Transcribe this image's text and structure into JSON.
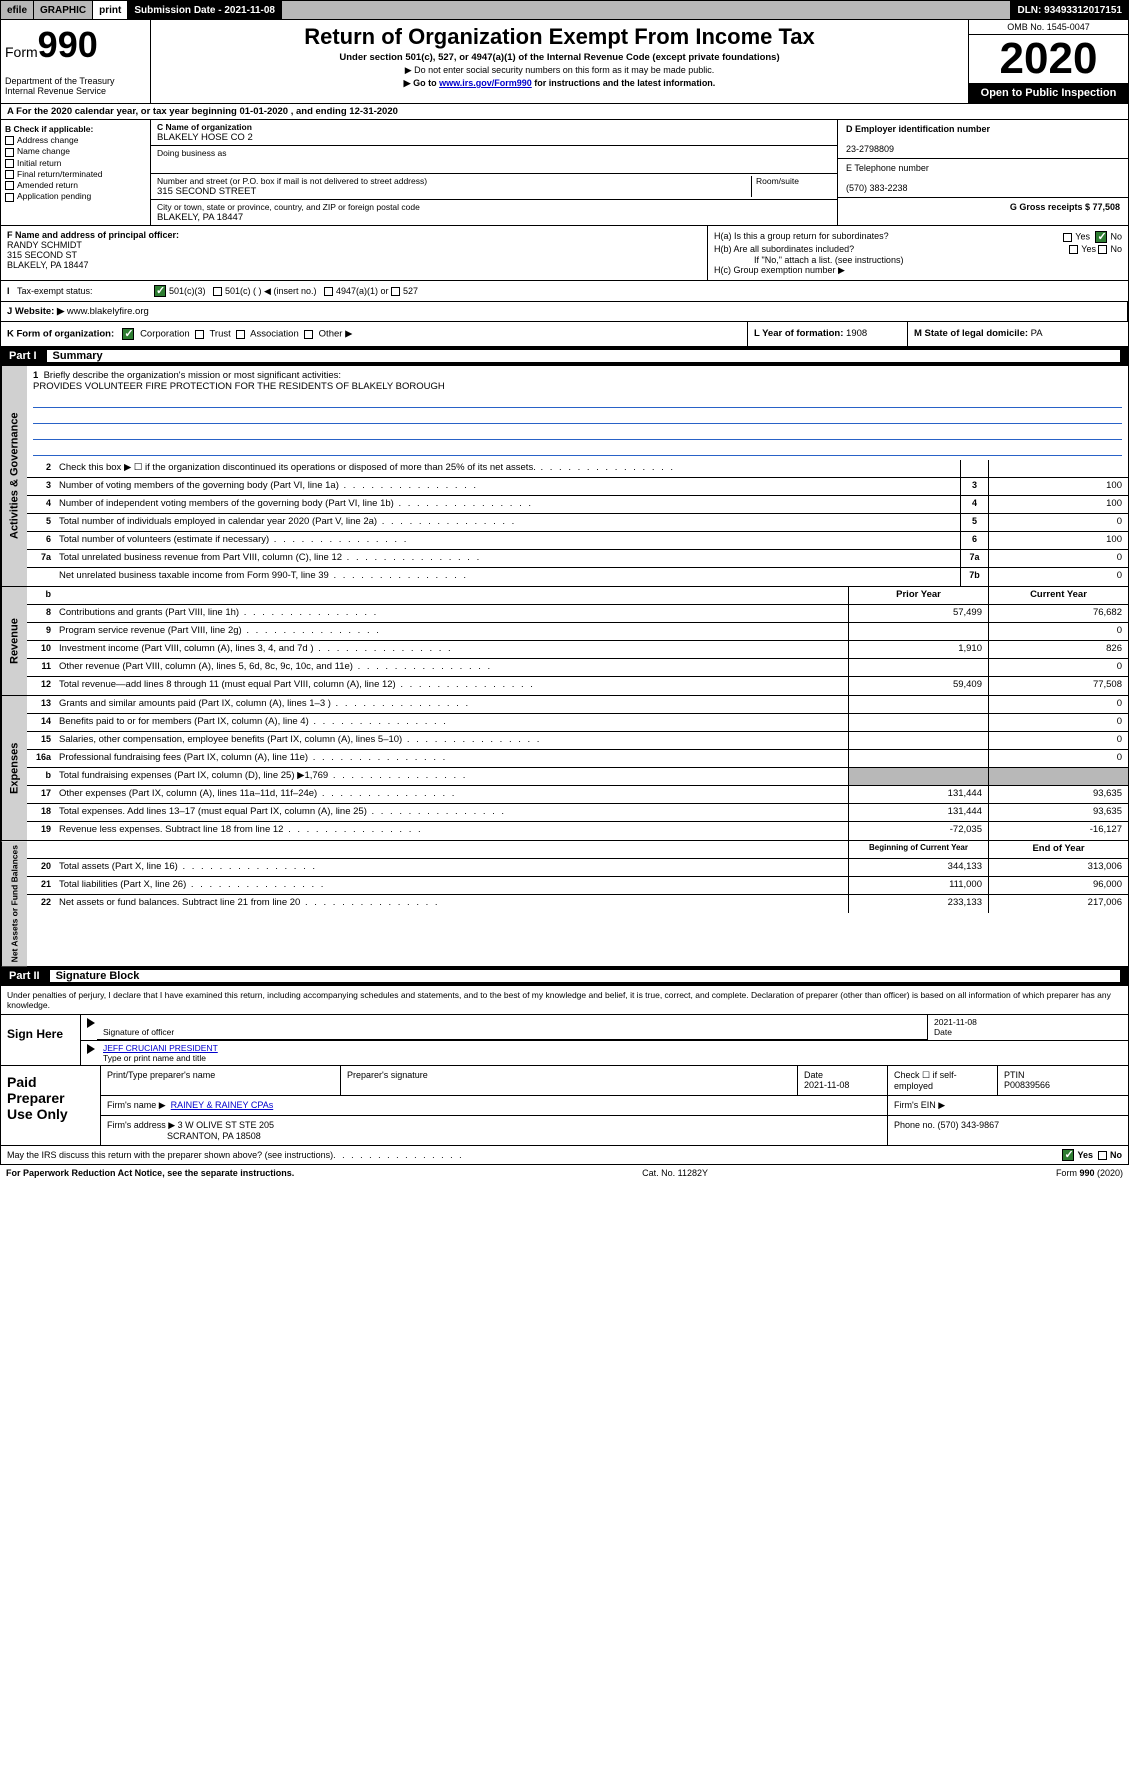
{
  "topbar": {
    "efile": "efile",
    "graphic": "GRAPHIC",
    "print": "print",
    "subdate_label": "Submission Date - 2021-11-08",
    "dln": "DLN: 93493312017151"
  },
  "header": {
    "form_prefix": "Form",
    "form_number": "990",
    "title": "Return of Organization Exempt From Income Tax",
    "subtitle": "Under section 501(c), 527, or 4947(a)(1) of the Internal Revenue Code (except private foundations)",
    "note1": "▶ Do not enter social security numbers on this form as it may be made public.",
    "note2_pre": "▶ Go to ",
    "note2_link": "www.irs.gov/Form990",
    "note2_post": " for instructions and the latest information.",
    "dept": "Department of the Treasury\nInternal Revenue Service",
    "omb": "OMB No. 1545-0047",
    "year": "2020",
    "inspection": "Open to Public Inspection"
  },
  "rowA": "A For the 2020 calendar year, or tax year beginning 01-01-2020   , and ending 12-31-2020",
  "colB": {
    "hdr": "B Check if applicable:",
    "opts": [
      "Address change",
      "Name change",
      "Initial return",
      "Final return/terminated",
      "Amended return",
      "Application pending"
    ]
  },
  "colC": {
    "name_label": "C Name of organization",
    "name": "BLAKELY HOSE CO 2",
    "dba_label": "Doing business as",
    "dba": "",
    "addr_label": "Number and street (or P.O. box if mail is not delivered to street address)",
    "room_label": "Room/suite",
    "addr": "315 SECOND STREET",
    "city_label": "City or town, state or province, country, and ZIP or foreign postal code",
    "city": "BLAKELY, PA  18447"
  },
  "colD": {
    "ein_label": "D Employer identification number",
    "ein": "23-2798809",
    "phone_label": "E Telephone number",
    "phone": "(570) 383-2238",
    "gross_label": "G Gross receipts $ 77,508"
  },
  "colF": {
    "label": "F  Name and address of principal officer:",
    "name": "RANDY SCHMIDT",
    "addr1": "315 SECOND ST",
    "addr2": "BLAKELY, PA  18447"
  },
  "colH": {
    "ha": "H(a)  Is this a group return for subordinates?",
    "hb": "H(b)  Are all subordinates included?",
    "hb_note": "If \"No,\" attach a list. (see instructions)",
    "hc": "H(c)  Group exemption number ▶",
    "yes": "Yes",
    "no": "No"
  },
  "rowI": {
    "label": "Tax-exempt status:",
    "opt1": "501(c)(3)",
    "opt2": "501(c) (   ) ◀ (insert no.)",
    "opt3": "4947(a)(1) or",
    "opt4": "527"
  },
  "rowJ": {
    "label": "J   Website: ▶",
    "val": "  www.blakelyfire.org"
  },
  "rowK": {
    "left": "K Form of organization:",
    "corp": "Corporation",
    "trust": "Trust",
    "assoc": "Association",
    "other": "Other ▶",
    "mid_label": "L Year of formation: ",
    "mid_val": "1908",
    "right_label": "M State of legal domicile: ",
    "right_val": "PA"
  },
  "part1": {
    "num": "Part I",
    "title": "Summary"
  },
  "mission": {
    "num": "1",
    "label": "Briefly describe the organization's mission or most significant activities:",
    "text": "PROVIDES VOLUNTEER FIRE PROTECTION FOR THE RESIDENTS OF BLAKELY BOROUGH"
  },
  "gov_rows": [
    {
      "num": "2",
      "desc": "Check this box ▶ ☐  if the organization discontinued its operations or disposed of more than 25% of its net assets.",
      "box": "",
      "val": ""
    },
    {
      "num": "3",
      "desc": "Number of voting members of the governing body (Part VI, line 1a)",
      "box": "3",
      "val": "100"
    },
    {
      "num": "4",
      "desc": "Number of independent voting members of the governing body (Part VI, line 1b)",
      "box": "4",
      "val": "100"
    },
    {
      "num": "5",
      "desc": "Total number of individuals employed in calendar year 2020 (Part V, line 2a)",
      "box": "5",
      "val": "0"
    },
    {
      "num": "6",
      "desc": "Total number of volunteers (estimate if necessary)",
      "box": "6",
      "val": "100"
    },
    {
      "num": "7a",
      "desc": "Total unrelated business revenue from Part VIII, column (C), line 12",
      "box": "7a",
      "val": "0"
    },
    {
      "num": "",
      "desc": "Net unrelated business taxable income from Form 990-T, line 39",
      "box": "7b",
      "val": "0"
    }
  ],
  "col_headers": {
    "prior": "Prior Year",
    "current": "Current Year"
  },
  "rev_rows": [
    {
      "num": "8",
      "desc": "Contributions and grants (Part VIII, line 1h)",
      "prior": "57,499",
      "cur": "76,682"
    },
    {
      "num": "9",
      "desc": "Program service revenue (Part VIII, line 2g)",
      "prior": "",
      "cur": "0"
    },
    {
      "num": "10",
      "desc": "Investment income (Part VIII, column (A), lines 3, 4, and 7d )",
      "prior": "1,910",
      "cur": "826"
    },
    {
      "num": "11",
      "desc": "Other revenue (Part VIII, column (A), lines 5, 6d, 8c, 9c, 10c, and 11e)",
      "prior": "",
      "cur": "0"
    },
    {
      "num": "12",
      "desc": "Total revenue—add lines 8 through 11 (must equal Part VIII, column (A), line 12)",
      "prior": "59,409",
      "cur": "77,508"
    }
  ],
  "exp_rows": [
    {
      "num": "13",
      "desc": "Grants and similar amounts paid (Part IX, column (A), lines 1–3 )",
      "prior": "",
      "cur": "0"
    },
    {
      "num": "14",
      "desc": "Benefits paid to or for members (Part IX, column (A), line 4)",
      "prior": "",
      "cur": "0"
    },
    {
      "num": "15",
      "desc": "Salaries, other compensation, employee benefits (Part IX, column (A), lines 5–10)",
      "prior": "",
      "cur": "0"
    },
    {
      "num": "16a",
      "desc": "Professional fundraising fees (Part IX, column (A), line 11e)",
      "prior": "",
      "cur": "0"
    },
    {
      "num": "b",
      "desc": "Total fundraising expenses (Part IX, column (D), line 25) ▶1,769",
      "prior": "shade",
      "cur": "shade"
    },
    {
      "num": "17",
      "desc": "Other expenses (Part IX, column (A), lines 11a–11d, 11f–24e)",
      "prior": "131,444",
      "cur": "93,635"
    },
    {
      "num": "18",
      "desc": "Total expenses. Add lines 13–17 (must equal Part IX, column (A), line 25)",
      "prior": "131,444",
      "cur": "93,635"
    },
    {
      "num": "19",
      "desc": "Revenue less expenses. Subtract line 18 from line 12",
      "prior": "-72,035",
      "cur": "-16,127"
    }
  ],
  "na_headers": {
    "begin": "Beginning of Current Year",
    "end": "End of Year"
  },
  "na_rows": [
    {
      "num": "20",
      "desc": "Total assets (Part X, line 16)",
      "prior": "344,133",
      "cur": "313,006"
    },
    {
      "num": "21",
      "desc": "Total liabilities (Part X, line 26)",
      "prior": "111,000",
      "cur": "96,000"
    },
    {
      "num": "22",
      "desc": "Net assets or fund balances. Subtract line 21 from line 20",
      "prior": "233,133",
      "cur": "217,006"
    }
  ],
  "part2": {
    "num": "Part II",
    "title": "Signature Block"
  },
  "sig_decl": "Under penalties of perjury, I declare that I have examined this return, including accompanying schedules and statements, and to the best of my knowledge and belief, it is true, correct, and complete. Declaration of preparer (other than officer) is based on all information of which preparer has any knowledge.",
  "sign": {
    "label": "Sign Here",
    "sig_label": "Signature of officer",
    "date_label": "Date",
    "date": "2021-11-08",
    "name": "JEFF CRUCIANI PRESIDENT",
    "name_label": "Type or print name and title"
  },
  "paid": {
    "label": "Paid Preparer Use Only",
    "h1": "Print/Type preparer's name",
    "h2": "Preparer's signature",
    "h3": "Date",
    "date": "2021-11-08",
    "h4": "Check ☐ if self-employed",
    "h5": "PTIN",
    "ptin": "P00839566",
    "firm_label": "Firm's name    ▶",
    "firm": "RAINEY & RAINEY CPAs",
    "ein_label": "Firm's EIN ▶",
    "addr_label": "Firm's address ▶",
    "addr1": "3 W OLIVE ST STE 205",
    "addr2": "SCRANTON, PA  18508",
    "phone_label": "Phone no. ",
    "phone": "(570) 343-9867"
  },
  "footer": {
    "discuss": "May the IRS discuss this return with the preparer shown above? (see instructions)",
    "yes": "Yes",
    "no": "No",
    "paperwork": "For Paperwork Reduction Act Notice, see the separate instructions.",
    "cat": "Cat. No. 11282Y",
    "form": "Form 990 (2020)"
  },
  "side_labels": {
    "gov": "Activities & Governance",
    "rev": "Revenue",
    "exp": "Expenses",
    "na": "Net Assets or Fund Balances"
  }
}
